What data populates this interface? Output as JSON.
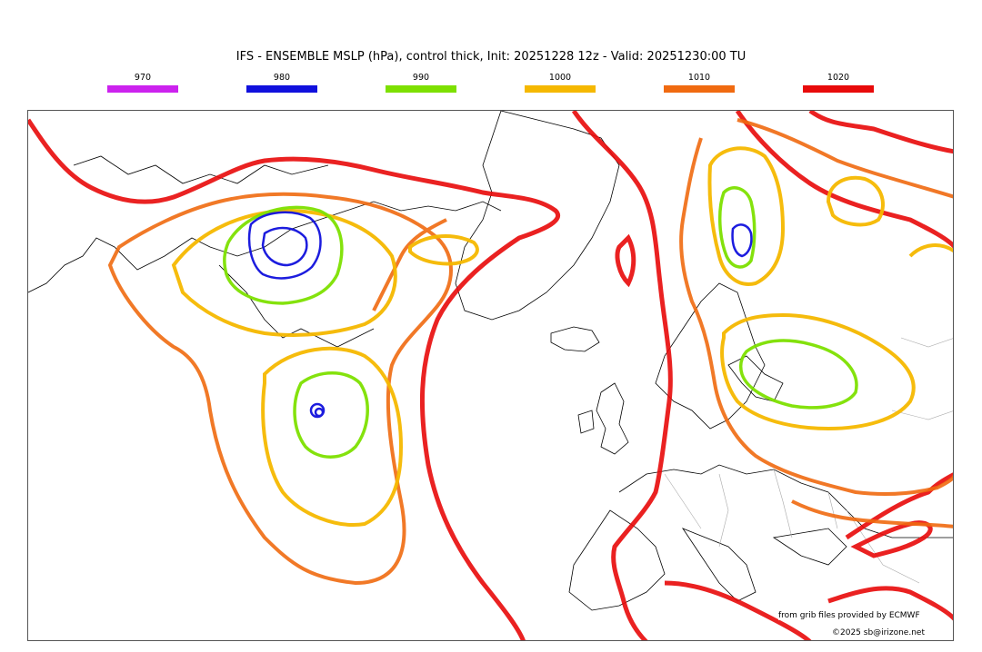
{
  "title": "IFS - ENSEMBLE MSLP (hPa), control thick, Init: 20251228 12z - Valid: 20251230:00 TU",
  "legend": [
    {
      "label": "970",
      "color": "#cc22ee"
    },
    {
      "label": "980",
      "color": "#1010dd"
    },
    {
      "label": "990",
      "color": "#7de000"
    },
    {
      "label": "1000",
      "color": "#f5b800"
    },
    {
      "label": "1010",
      "color": "#f06a10"
    },
    {
      "label": "1020",
      "color": "#e80a0a"
    }
  ],
  "credits": {
    "source": "from grib files provided by ECMWF",
    "copyright": "©2025 sb@irizone.net"
  }
}
